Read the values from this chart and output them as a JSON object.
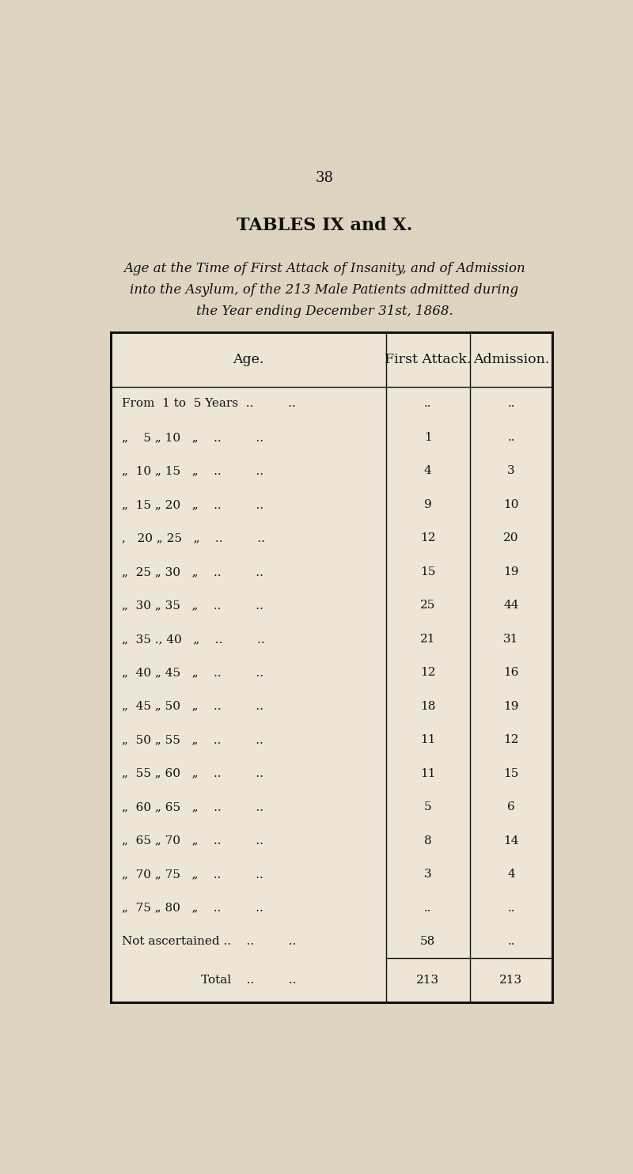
{
  "page_number": "38",
  "title": "TABLES IX and X.",
  "subtitle_line1": "Age at the Time of First Attack of Insanity, and of Admission",
  "subtitle_line2": "into the Asylum, of the 213 Male Patients admitted during",
  "subtitle_line3": "the Year ending December 31st, 1868.",
  "col_headers": [
    "Age.",
    "First Attack.",
    "Admission."
  ],
  "age_labels": [
    "From  1 to  5 Years  ..         ..",
    "„    5 „ 10   „    ..         ..",
    "„  10 „ 15   „    ..         ..",
    "„  15 „ 20   „    ..         ..",
    ",   20 „ 25   „    ..         ..",
    "„  25 „ 30   „    ..         ..",
    "„  30 „ 35   „    ..         ..",
    "„  35 ., 40   „    ..         ..",
    "„  40 „ 45   „    ..         ..",
    "„  45 „ 50   „    ..         ..",
    "„  50 „ 55   „    ..         ..",
    "„  55 „ 60   „    ..         ..",
    "„  60 „ 65   „    ..         ..",
    "„  65 „ 70   „    ..         ..",
    "„  70 „ 75   „    ..         ..",
    "„  75 „ 80   „    ..         ..",
    "Not ascertained ..    ..         .."
  ],
  "first_attack": [
    "..",
    "1",
    "4",
    "9",
    "12",
    "15",
    "25",
    "21",
    "12",
    "18",
    "11",
    "11",
    "5",
    "8",
    "3",
    "..",
    "58"
  ],
  "admission": [
    "..",
    "..",
    "3",
    "10",
    "20",
    "19",
    "44",
    "31",
    "16",
    "19",
    "12",
    "15",
    "6",
    "14",
    "4",
    "..",
    ".."
  ],
  "total_first_attack": "213",
  "total_admission": "213",
  "bg_color": "#ddd5c0",
  "table_bg": "#ede6d6",
  "text_color": "#111111",
  "line_color": "#111111"
}
